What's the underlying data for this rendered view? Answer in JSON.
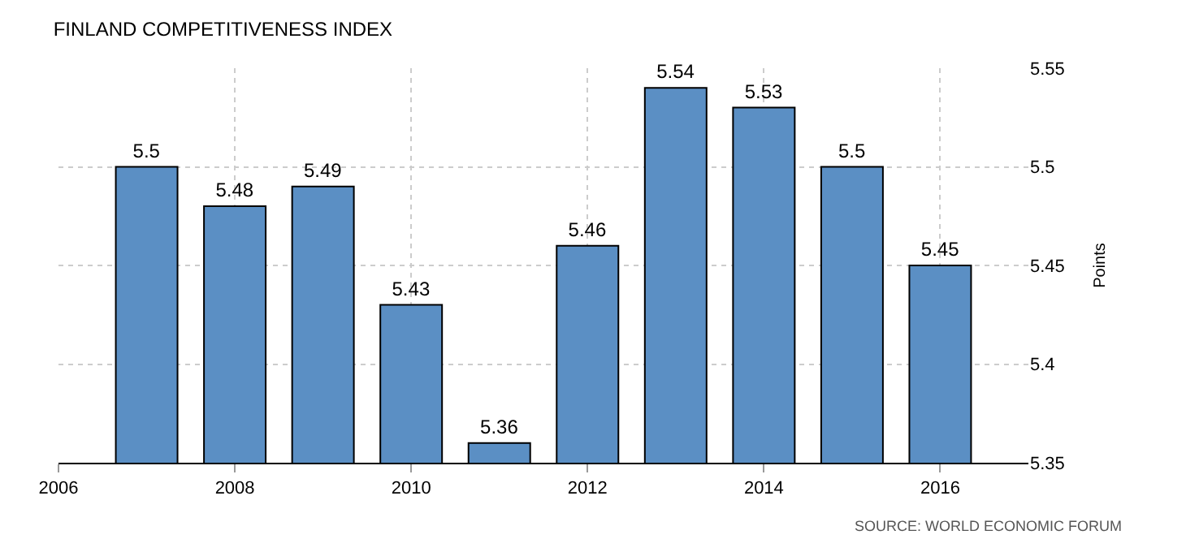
{
  "chart_data": {
    "type": "bar",
    "title": "FINLAND COMPETITIVENESS INDEX",
    "ylabel": "Points",
    "x": [
      2007,
      2008,
      2009,
      2010,
      2011,
      2012,
      2013,
      2014,
      2015,
      2016
    ],
    "values": [
      5.5,
      5.48,
      5.49,
      5.43,
      5.36,
      5.46,
      5.54,
      5.53,
      5.5,
      5.45
    ],
    "color": "#5b8fc4",
    "xlim": [
      2006,
      2017
    ],
    "xticks": [
      2006,
      2008,
      2010,
      2012,
      2014,
      2016
    ],
    "ylim": [
      5.35,
      5.55
    ],
    "yticks": [
      5.35,
      5.4,
      5.45,
      5.5,
      5.55
    ],
    "grid": true,
    "data_labels": true,
    "annotations": [
      "SOURCE: WORLD ECONOMIC FORUM"
    ]
  }
}
